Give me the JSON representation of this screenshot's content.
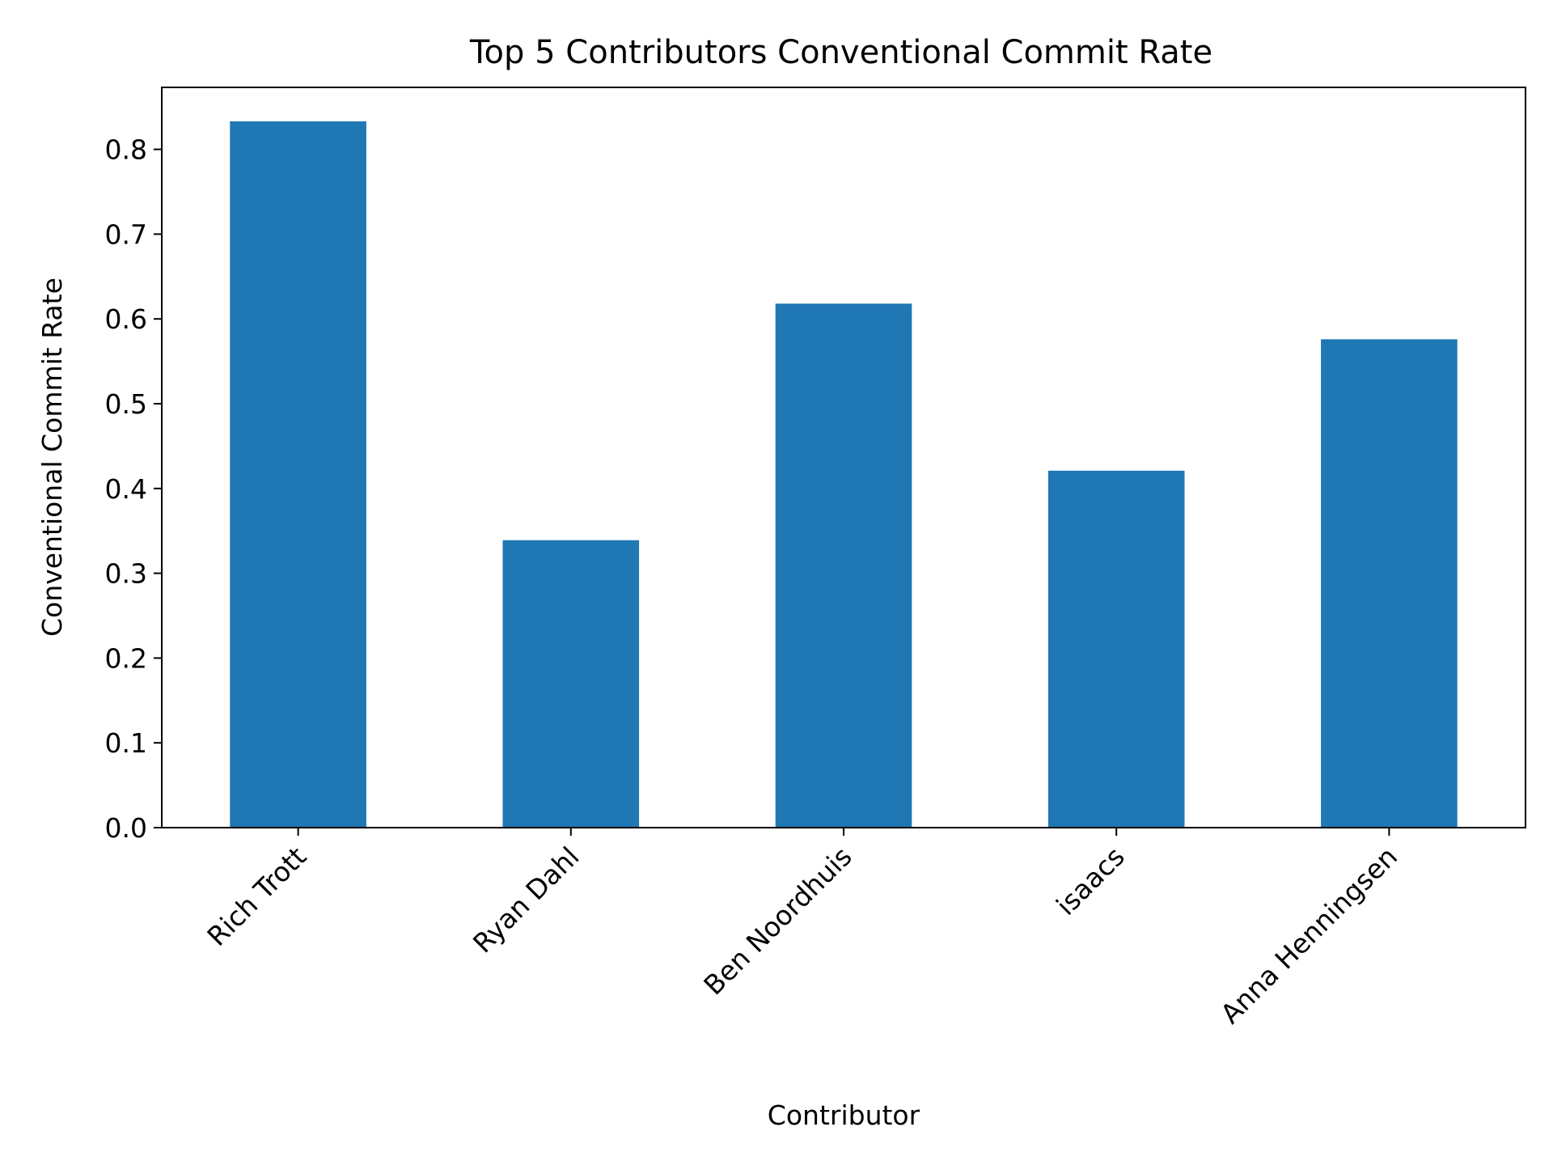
{
  "chart_data": {
    "type": "bar",
    "title": "Top 5 Contributors Conventional Commit Rate",
    "xlabel": "Contributor",
    "ylabel": "Conventional Commit Rate",
    "categories": [
      "Rich Trott",
      "Ryan Dahl",
      "Ben Noordhuis",
      "isaacs",
      "Anna Henningsen"
    ],
    "values": [
      0.833,
      0.339,
      0.618,
      0.421,
      0.576
    ],
    "ylim": [
      0,
      0.875
    ],
    "yticks": [
      "0.0",
      "0.1",
      "0.2",
      "0.3",
      "0.4",
      "0.5",
      "0.6",
      "0.7",
      "0.8"
    ],
    "grid": false,
    "legend": "none",
    "colors": {
      "bar": "#1f77b4",
      "axis": "#000000",
      "background": "#ffffff"
    }
  }
}
